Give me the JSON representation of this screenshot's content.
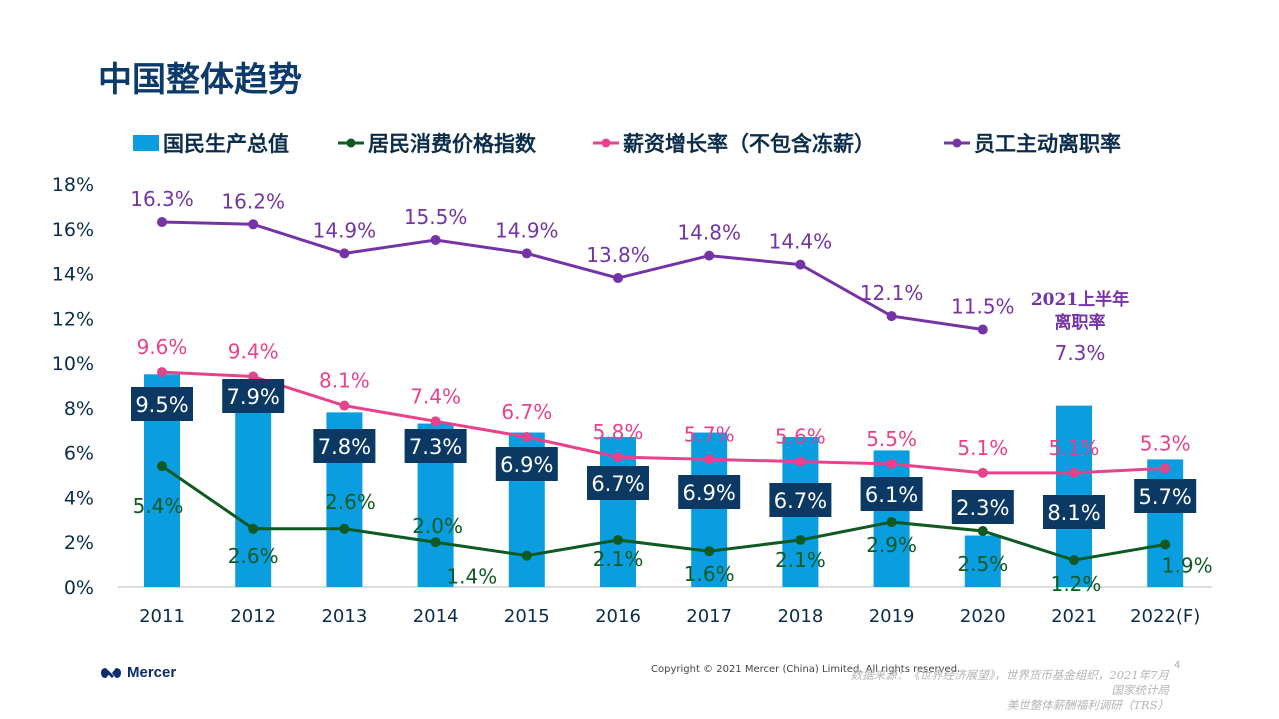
{
  "title": "中国整体趋势",
  "chart_data": {
    "type": "bar+line",
    "categories": [
      "2011",
      "2012",
      "2013",
      "2014",
      "2015",
      "2016",
      "2017",
      "2018",
      "2019",
      "2020",
      "2021",
      "2022(F)"
    ],
    "ylim": [
      0,
      18
    ],
    "yticks": [
      "0%",
      "2%",
      "4%",
      "6%",
      "8%",
      "10%",
      "12%",
      "14%",
      "16%",
      "18%"
    ],
    "grid": false,
    "legend_position": "top",
    "series": [
      {
        "name": "国民生产总值",
        "type": "bar",
        "color": "#0a9de0",
        "values": [
          9.5,
          7.9,
          7.8,
          7.3,
          6.9,
          6.7,
          6.9,
          6.7,
          6.1,
          2.3,
          8.1,
          5.7
        ]
      },
      {
        "name": "居民消费价格指数",
        "type": "line",
        "color": "#0e5a22",
        "values": [
          5.4,
          2.6,
          2.6,
          2.0,
          1.4,
          2.1,
          1.6,
          2.1,
          2.9,
          2.5,
          1.2,
          1.9
        ]
      },
      {
        "name": "薪资增长率（不包含冻薪）",
        "type": "line",
        "color": "#e8428c",
        "values": [
          9.6,
          9.4,
          8.1,
          7.4,
          6.7,
          5.8,
          5.7,
          5.6,
          5.5,
          5.1,
          5.1,
          5.3
        ]
      },
      {
        "name": "员工主动离职率",
        "type": "line",
        "color": "#7434a6",
        "values": [
          16.3,
          16.2,
          14.9,
          15.5,
          14.9,
          13.8,
          14.8,
          14.4,
          12.1,
          11.5,
          null,
          null
        ]
      }
    ],
    "annotation": {
      "text_line1": "2021上半年",
      "text_line2": "离职率",
      "value": "7.3%"
    }
  },
  "footer": {
    "logo": "Mercer",
    "copyright": "Copyright © 2021 Mercer (China) Limited. All rights reserved.",
    "page": "4",
    "source_lines": [
      "数据来源：《世界经济展望》，世界货币基金组织，2021年7月",
      "国家统计局",
      "美世整体薪酬福利调研（TRS）"
    ]
  }
}
